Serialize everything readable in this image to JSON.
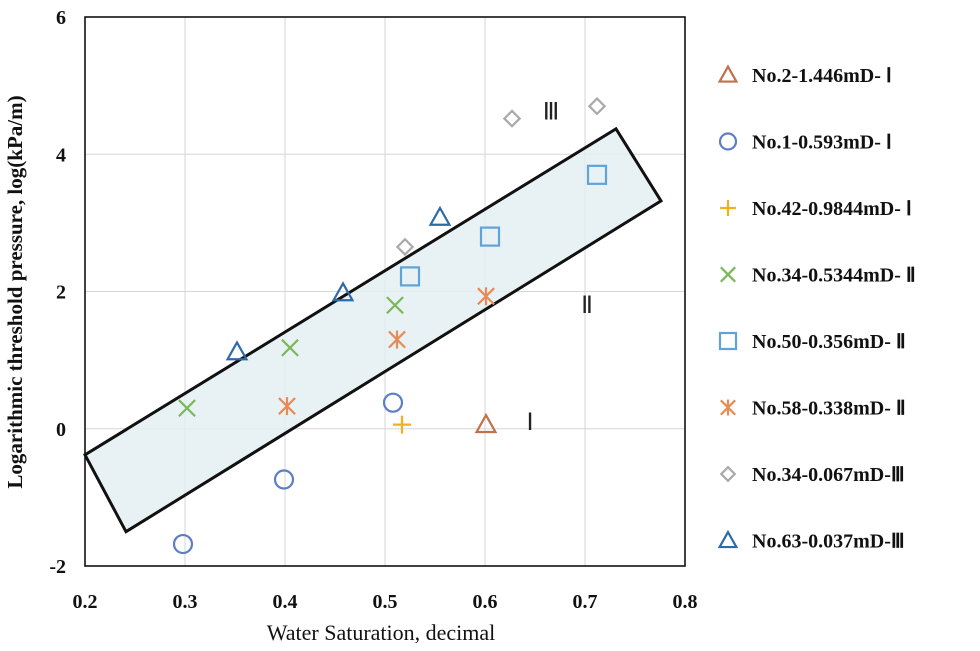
{
  "chart_data": {
    "type": "scatter",
    "title": "",
    "xlabel": "Water Saturation, decimal",
    "ylabel": "Logarithmic threshold pressure, log(kPa/m)",
    "xlim": [
      0.2,
      0.8
    ],
    "ylim": [
      -2,
      6
    ],
    "xticks": [
      "0.2",
      "0.3",
      "0.4",
      "0.5",
      "0.6",
      "0.7",
      "0.8"
    ],
    "yticks": [
      "-2",
      "0",
      "2",
      "4",
      "6"
    ],
    "grid": "vertical and horizontal major gridlines",
    "legend_position": "right",
    "series": [
      {
        "name": "No.2-1.446mD- Ⅰ",
        "marker": "triangle",
        "color": "#c0714a",
        "points": [
          [
            0.601,
            0.06
          ]
        ]
      },
      {
        "name": "No.1-0.593mD- Ⅰ",
        "marker": "circle",
        "color": "#5b7fc2",
        "points": [
          [
            0.298,
            -1.68
          ],
          [
            0.399,
            -0.74
          ],
          [
            0.508,
            0.38
          ]
        ]
      },
      {
        "name": "No.42-0.9844mD- Ⅰ",
        "marker": "plus",
        "color": "#f2b01e",
        "points": [
          [
            0.517,
            0.06
          ]
        ]
      },
      {
        "name": "No.34-0.5344mD- Ⅱ",
        "marker": "cross",
        "color": "#7ab85a",
        "points": [
          [
            0.302,
            0.3
          ],
          [
            0.405,
            1.18
          ],
          [
            0.51,
            1.8
          ]
        ]
      },
      {
        "name": "No.50-0.356mD- Ⅱ",
        "marker": "square",
        "color": "#5fa3d8",
        "points": [
          [
            0.525,
            2.22
          ],
          [
            0.605,
            2.8
          ],
          [
            0.712,
            3.7
          ]
        ]
      },
      {
        "name": "No.58-0.338mD- Ⅱ",
        "marker": "asterisk",
        "color": "#e88a55",
        "points": [
          [
            0.402,
            0.33
          ],
          [
            0.512,
            1.3
          ],
          [
            0.601,
            1.93
          ]
        ]
      },
      {
        "name": "No.34-0.067mD-Ⅲ",
        "marker": "diamond",
        "color": "#a9a9a9",
        "points": [
          [
            0.52,
            2.65
          ],
          [
            0.627,
            4.52
          ],
          [
            0.712,
            4.7
          ]
        ]
      },
      {
        "name": "No.63-0.037mD-Ⅲ",
        "marker": "triangle",
        "color": "#2f6aa8",
        "points": [
          [
            0.352,
            1.12
          ],
          [
            0.458,
            1.98
          ],
          [
            0.555,
            3.08
          ]
        ]
      }
    ],
    "annotations": [
      {
        "text": "Ⅰ",
        "x": 0.645,
        "y": 0.1
      },
      {
        "text": "Ⅱ",
        "x": 0.702,
        "y": 1.8
      },
      {
        "text": "Ⅲ",
        "x": 0.666,
        "y": 4.62
      }
    ],
    "band": {
      "label": "shaded band",
      "corners": [
        [
          0.2,
          -0.38
        ],
        [
          0.731,
          4.37
        ],
        [
          0.776,
          3.32
        ],
        [
          0.241,
          -1.5
        ]
      ]
    }
  }
}
